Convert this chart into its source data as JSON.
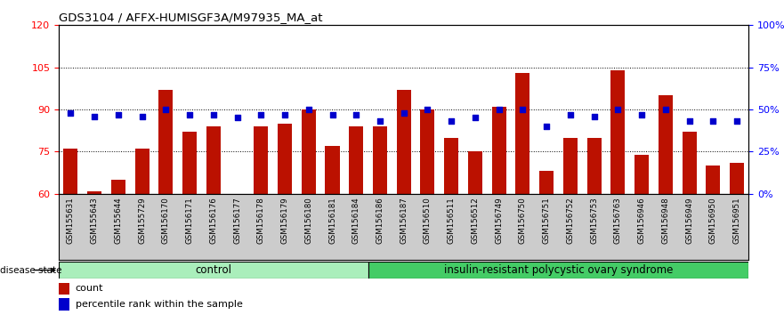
{
  "title": "GDS3104 / AFFX-HUMISGF3A/M97935_MA_at",
  "samples": [
    "GSM155631",
    "GSM155643",
    "GSM155644",
    "GSM155729",
    "GSM156170",
    "GSM156171",
    "GSM156176",
    "GSM156177",
    "GSM156178",
    "GSM156179",
    "GSM156180",
    "GSM156181",
    "GSM156184",
    "GSM156186",
    "GSM156187",
    "GSM156510",
    "GSM156511",
    "GSM156512",
    "GSM156749",
    "GSM156750",
    "GSM156751",
    "GSM156752",
    "GSM156753",
    "GSM156763",
    "GSM156946",
    "GSM156948",
    "GSM156949",
    "GSM156950",
    "GSM156951"
  ],
  "count_values": [
    76,
    61,
    65,
    76,
    97,
    82,
    84,
    60,
    84,
    85,
    90,
    77,
    84,
    84,
    97,
    90,
    80,
    75,
    91,
    103,
    68,
    80,
    80,
    104,
    74,
    95,
    82,
    70,
    71
  ],
  "percentile_values": [
    48,
    46,
    47,
    46,
    50,
    47,
    47,
    45,
    47,
    47,
    50,
    47,
    47,
    43,
    48,
    50,
    43,
    45,
    50,
    50,
    40,
    47,
    46,
    50,
    47,
    50,
    43,
    43,
    43
  ],
  "control_count": 13,
  "disease_count": 16,
  "ylim_left": [
    60,
    120
  ],
  "ylim_right": [
    0,
    100
  ],
  "yticks_left": [
    60,
    75,
    90,
    105,
    120
  ],
  "yticks_right": [
    0,
    25,
    50,
    75,
    100
  ],
  "bar_color": "#BB1100",
  "dot_color": "#0000CC",
  "control_color": "#AAEEBB",
  "disease_color": "#44CC66",
  "tick_bg_color": "#CCCCCC",
  "control_label": "control",
  "disease_label": "insulin-resistant polycystic ovary syndrome",
  "legend_count_label": "count",
  "legend_pct_label": "percentile rank within the sample"
}
